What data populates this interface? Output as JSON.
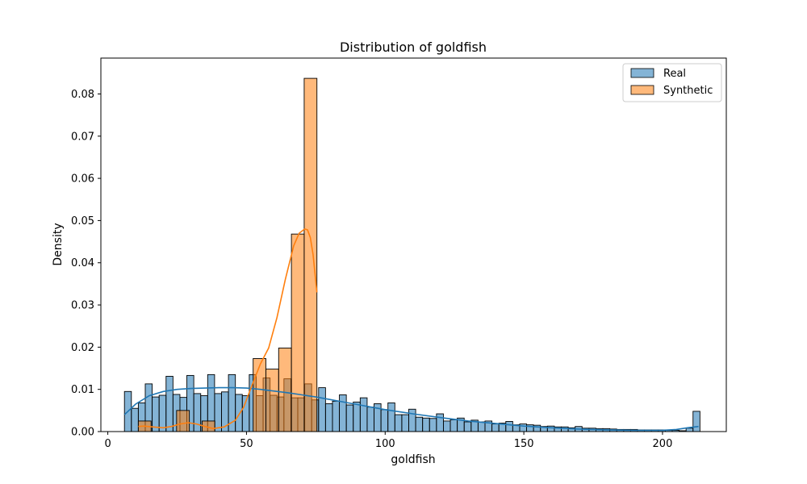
{
  "chart_data": {
    "type": "histogram",
    "title": "Distribution of goldfish",
    "xlabel": "goldfish",
    "ylabel": "Density",
    "xlim": [
      -2.5,
      223
    ],
    "ylim": [
      0,
      0.0885
    ],
    "xticks": [
      0,
      50,
      100,
      150,
      200
    ],
    "yticks": [
      0.0,
      0.01,
      0.02,
      0.03,
      0.04,
      0.05,
      0.06,
      0.07,
      0.08
    ],
    "grid": false,
    "legend_position": "top-right",
    "series": [
      {
        "name": "Real",
        "color": "#1f77b4",
        "bin_edges": [
          6.0,
          8.5,
          11.0,
          13.5,
          16.0,
          18.5,
          21.0,
          23.5,
          26.0,
          28.5,
          31.0,
          33.5,
          36.0,
          38.5,
          41.0,
          43.5,
          46.0,
          48.5,
          51.0,
          53.5,
          56.0,
          58.5,
          61.0,
          63.5,
          66.0,
          68.5,
          71.0,
          73.5,
          76.0,
          78.5,
          81.0,
          83.5,
          86.0,
          88.5,
          91.0,
          93.5,
          96.0,
          98.5,
          101.0,
          103.5,
          106.0,
          108.5,
          111.0,
          113.5,
          116.0,
          118.5,
          121.0,
          123.5,
          126.0,
          128.5,
          131.0,
          133.5,
          136.0,
          138.5,
          141.0,
          143.5,
          146.0,
          148.5,
          151.0,
          153.5,
          156.0,
          158.5,
          161.0,
          163.5,
          166.0,
          168.5,
          171.0,
          173.5,
          176.0,
          178.5,
          181.0,
          183.5,
          186.0,
          188.5,
          191.0,
          193.5,
          196.0,
          198.5,
          201.0,
          203.5,
          206.0,
          208.5,
          211.0,
          213.5
        ],
        "densities": [
          0.0095,
          0.0055,
          0.0068,
          0.0113,
          0.0082,
          0.0086,
          0.0131,
          0.0088,
          0.0081,
          0.0133,
          0.009,
          0.0085,
          0.0135,
          0.009,
          0.0094,
          0.0135,
          0.0088,
          0.0085,
          0.0135,
          0.0085,
          0.0127,
          0.0086,
          0.0082,
          0.0125,
          0.008,
          0.008,
          0.0113,
          0.0075,
          0.0104,
          0.0066,
          0.0072,
          0.0087,
          0.0063,
          0.007,
          0.008,
          0.0058,
          0.0066,
          0.0052,
          0.0068,
          0.004,
          0.004,
          0.0053,
          0.0034,
          0.0032,
          0.0031,
          0.0042,
          0.0025,
          0.0028,
          0.0032,
          0.0023,
          0.0027,
          0.0023,
          0.0025,
          0.0018,
          0.002,
          0.0024,
          0.0016,
          0.0018,
          0.0016,
          0.0015,
          0.0012,
          0.0013,
          0.0011,
          0.0011,
          0.0009,
          0.0012,
          0.0008,
          0.0008,
          0.0007,
          0.0007,
          0.0006,
          0.0005,
          0.0005,
          0.0005,
          0.0004,
          0.0004,
          0.0004,
          0.0004,
          0.0003,
          0.0003,
          0.0002,
          0.0008,
          0.0048
        ],
        "kde": {
          "x": [
            6,
            10,
            15,
            20,
            25,
            30,
            35,
            40,
            45,
            50,
            55,
            60,
            65,
            70,
            75,
            80,
            85,
            90,
            95,
            100,
            110,
            120,
            130,
            140,
            150,
            160,
            170,
            180,
            190,
            200,
            205,
            209,
            213
          ],
          "y": [
            0.004,
            0.0065,
            0.0085,
            0.0095,
            0.01,
            0.0102,
            0.0103,
            0.0104,
            0.0104,
            0.0103,
            0.01,
            0.0096,
            0.0092,
            0.0087,
            0.0082,
            0.0076,
            0.007,
            0.0064,
            0.0058,
            0.0052,
            0.0042,
            0.0033,
            0.0025,
            0.0019,
            0.0013,
            0.0009,
            0.0006,
            0.0004,
            0.0003,
            0.0003,
            0.0005,
            0.0009,
            0.0012
          ]
        }
      },
      {
        "name": "Synthetic",
        "color": "#ff7f0e",
        "bin_edges": [
          11.0,
          15.6,
          20.2,
          24.8,
          29.4,
          34.0,
          38.6,
          43.2,
          47.8,
          52.4,
          57.0,
          61.6,
          66.2,
          70.8,
          75.4
        ],
        "densities": [
          0.0025,
          0.0,
          0.0,
          0.005,
          0.0,
          0.0025,
          0.0,
          0.0,
          0.0,
          0.0173,
          0.0148,
          0.0198,
          0.0468,
          0.0837
        ],
        "kde": {
          "x": [
            11,
            13,
            16,
            20,
            23,
            26,
            29,
            32,
            35,
            38,
            42,
            46,
            49,
            52,
            55,
            58,
            61,
            64,
            67,
            69,
            71,
            72,
            73,
            74,
            75.4
          ],
          "y": [
            0.0012,
            0.0013,
            0.0011,
            0.0009,
            0.0012,
            0.0018,
            0.0021,
            0.0018,
            0.0012,
            0.0007,
            0.0011,
            0.0027,
            0.0058,
            0.011,
            0.016,
            0.0198,
            0.027,
            0.036,
            0.044,
            0.047,
            0.048,
            0.0478,
            0.046,
            0.042,
            0.033
          ]
        }
      }
    ]
  }
}
